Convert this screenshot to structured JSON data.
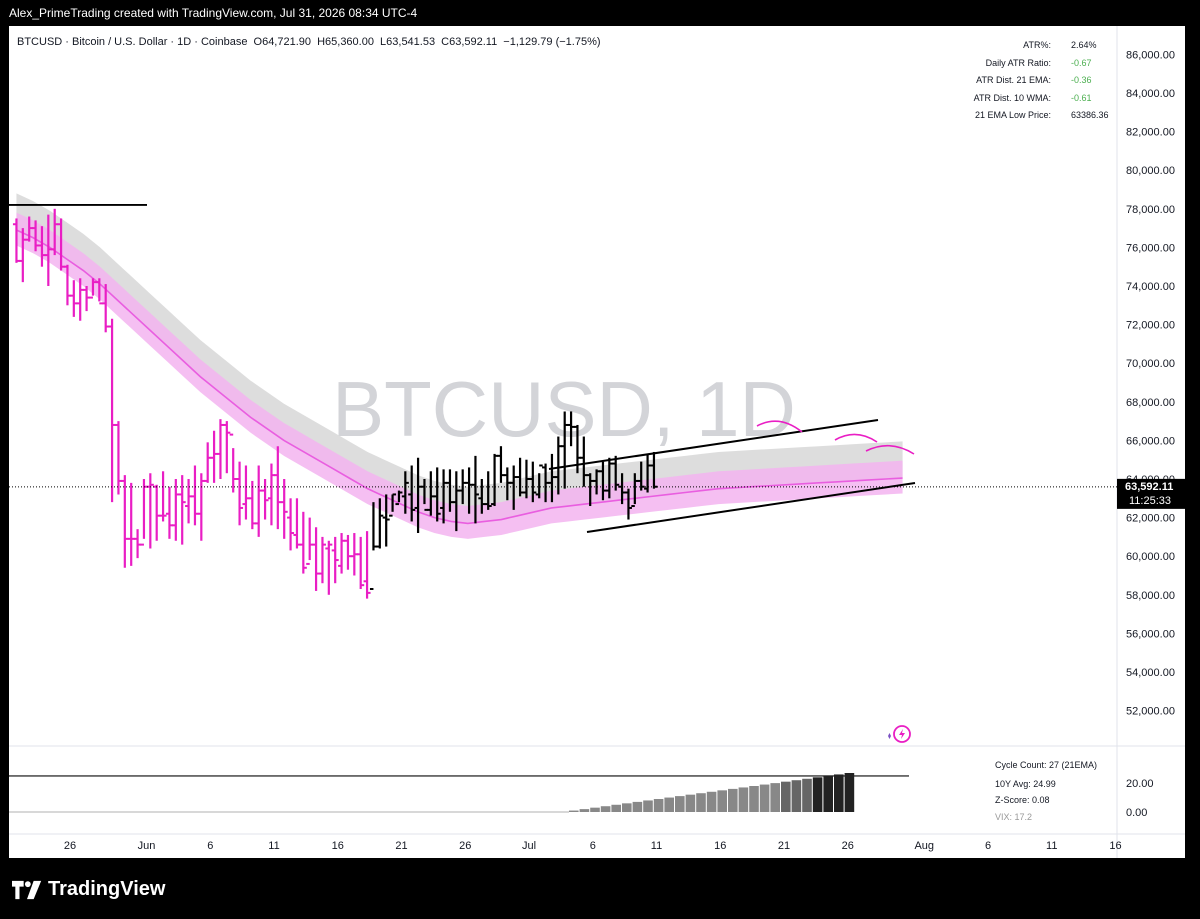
{
  "header": {
    "attribution": "Alex_PrimeTrading created with TradingView.com, Jul 31, 2026 08:34 UTC-4"
  },
  "legend": {
    "symbol": "BTCUSD · Bitcoin / U.S. Dollar · 1D · Coinbase",
    "open": "O64,721.90",
    "high": "H65,360.00",
    "low": "L63,541.53",
    "close": "C63,592.11",
    "change": "−1,129.79 (−1.75%)"
  },
  "watermark": "BTCUSD, 1D",
  "stats_table": [
    {
      "label": "ATR%:",
      "value": "2.64%",
      "color": "#131722"
    },
    {
      "label": "Daily ATR Ratio:",
      "value": "-0.67",
      "color": "#4caf50"
    },
    {
      "label": "ATR Dist. 21 EMA:",
      "value": "-0.36",
      "color": "#4caf50"
    },
    {
      "label": "ATR Dist. 10 WMA:",
      "value": "-0.61",
      "color": "#4caf50"
    },
    {
      "label": "21 EMA Low Price:",
      "value": "63386.36",
      "color": "#131722"
    }
  ],
  "price_label": {
    "price": "63,592.11",
    "countdown": "11:25:33"
  },
  "indicator": {
    "cycle_count": "Cycle Count: 27 (21EMA)",
    "avg": "10Y Avg: 24.99",
    "zscore": "Z-Score: 0.08",
    "vix": "VIX: 17.2",
    "axis_ticks": [
      "20.00",
      "0.00"
    ]
  },
  "brand": "TradingView",
  "colors": {
    "bar_up": "#000000",
    "bar_down": "#e91ec4",
    "ema_band": "#f3b4f0",
    "ema_line": "#e95ee0",
    "gray_band": "#d9d9d9",
    "channel": "#000000",
    "arcs": "#e91ec4"
  },
  "chart_data": {
    "type": "ohlc",
    "ylim": [
      50000,
      87000
    ],
    "y_ticks": [
      "52,000.00",
      "54,000.00",
      "56,000.00",
      "58,000.00",
      "60,000.00",
      "62,000.00",
      "64,000.00",
      "66,000.00",
      "68,000.00",
      "70,000.00",
      "72,000.00",
      "74,000.00",
      "76,000.00",
      "78,000.00",
      "80,000.00",
      "82,000.00",
      "84,000.00",
      "86,000.00"
    ],
    "x_ticks": [
      {
        "label": "26",
        "day": 0
      },
      {
        "label": "Jun",
        "day": 6
      },
      {
        "label": "6",
        "day": 11
      },
      {
        "label": "11",
        "day": 16
      },
      {
        "label": "16",
        "day": 21
      },
      {
        "label": "21",
        "day": 26
      },
      {
        "label": "26",
        "day": 31
      },
      {
        "label": "Jul",
        "day": 36
      },
      {
        "label": "6",
        "day": 41
      },
      {
        "label": "11",
        "day": 46
      },
      {
        "label": "16",
        "day": 51
      },
      {
        "label": "21",
        "day": 56
      },
      {
        "label": "26",
        "day": 61
      },
      {
        "label": "Aug",
        "day": 67
      },
      {
        "label": "6",
        "day": 72
      },
      {
        "label": "11",
        "day": 77
      },
      {
        "label": "16",
        "day": 82
      }
    ],
    "bars": [
      [
        77200,
        77500,
        75200,
        75300
      ],
      [
        75300,
        77000,
        74200,
        76400
      ],
      [
        76400,
        77600,
        76300,
        77000
      ],
      [
        77000,
        77400,
        75800,
        76100
      ],
      [
        76100,
        77100,
        75000,
        75600
      ],
      [
        75600,
        77700,
        74000,
        75900
      ],
      [
        75900,
        78000,
        75600,
        77200
      ],
      [
        77200,
        77500,
        74800,
        75000
      ],
      [
        75000,
        75100,
        73000,
        73500
      ],
      [
        73500,
        74300,
        72400,
        73100
      ],
      [
        73100,
        74400,
        72200,
        73800
      ],
      [
        73800,
        74000,
        72700,
        73400
      ],
      [
        73400,
        74400,
        73500,
        74200
      ],
      [
        74200,
        74400,
        73200,
        73100
      ],
      [
        73100,
        74100,
        71600,
        71900
      ],
      [
        71900,
        72300,
        62800,
        66800
      ],
      [
        66800,
        67000,
        63200,
        63900
      ],
      [
        63900,
        64200,
        59400,
        60900
      ],
      [
        60900,
        63800,
        59500,
        60900
      ],
      [
        60900,
        61400,
        59900,
        60600
      ],
      [
        60600,
        64000,
        60900,
        63600
      ],
      [
        63600,
        64300,
        60400,
        63700
      ],
      [
        63600,
        63700,
        60800,
        62100
      ],
      [
        62100,
        64400,
        61800,
        62100
      ],
      [
        62200,
        63600,
        60900,
        61600
      ],
      [
        61600,
        64000,
        60800,
        63200
      ],
      [
        63200,
        64200,
        60600,
        62800
      ],
      [
        62600,
        64000,
        61700,
        63100
      ],
      [
        63100,
        64700,
        61600,
        62200
      ],
      [
        62200,
        64300,
        60800,
        63900
      ],
      [
        63900,
        65900,
        63800,
        65100
      ],
      [
        65100,
        66500,
        63800,
        65300
      ],
      [
        65300,
        67100,
        64000,
        66800
      ],
      [
        66800,
        67000,
        64300,
        66400
      ],
      [
        66300,
        65600,
        63300,
        64000
      ],
      [
        64000,
        64900,
        61600,
        62500
      ],
      [
        62700,
        64700,
        61900,
        63000
      ],
      [
        63000,
        63900,
        61400,
        61700
      ],
      [
        61700,
        64700,
        61000,
        63400
      ],
      [
        63400,
        64000,
        61900,
        62900
      ],
      [
        63000,
        64800,
        61600,
        64200
      ],
      [
        64200,
        65700,
        61400,
        62800
      ],
      [
        62800,
        64000,
        60900,
        62300
      ],
      [
        62000,
        63000,
        60300,
        61200
      ],
      [
        61100,
        63000,
        60400,
        60600
      ],
      [
        60600,
        62300,
        59100,
        59400
      ],
      [
        59600,
        62000,
        59800,
        60600
      ],
      [
        60600,
        61500,
        58200,
        59100
      ],
      [
        59100,
        61000,
        58600,
        60600
      ],
      [
        60400,
        60800,
        58000,
        60600
      ],
      [
        60300,
        61000,
        58600,
        59800
      ],
      [
        59500,
        61200,
        59100,
        60800
      ],
      [
        60800,
        61100,
        59300,
        60000
      ],
      [
        60000,
        61200,
        59000,
        60100
      ],
      [
        60100,
        61000,
        58300,
        58500
      ],
      [
        58700,
        61300,
        57800,
        58100
      ],
      [
        58300,
        62800,
        60300,
        60500
      ],
      [
        60500,
        63000,
        60400,
        62100
      ],
      [
        62000,
        63200,
        60500,
        61900
      ],
      [
        62100,
        63200,
        62300,
        63200
      ],
      [
        62700,
        63400,
        62800,
        63300
      ],
      [
        63100,
        64400,
        62200,
        63800
      ],
      [
        63200,
        64700,
        61800,
        62400
      ],
      [
        62500,
        65100,
        61200,
        63600
      ],
      [
        63600,
        64000,
        62700,
        62400
      ],
      [
        62400,
        64400,
        62100,
        63100
      ],
      [
        63100,
        64600,
        61800,
        62200
      ],
      [
        62500,
        64500,
        61700,
        63800
      ],
      [
        63800,
        64500,
        62300,
        62800
      ],
      [
        62800,
        64400,
        61300,
        63400
      ],
      [
        63400,
        64500,
        62700,
        63800
      ],
      [
        63800,
        64600,
        62200,
        63700
      ],
      [
        63700,
        65200,
        61700,
        63200
      ],
      [
        63000,
        64000,
        62200,
        62700
      ],
      [
        62700,
        64400,
        62400,
        62600
      ],
      [
        62700,
        65300,
        62600,
        65200
      ],
      [
        65200,
        65700,
        63800,
        64200
      ],
      [
        64200,
        64600,
        62900,
        63800
      ],
      [
        63800,
        64700,
        62400,
        64100
      ],
      [
        64100,
        65100,
        63100,
        63300
      ],
      [
        63300,
        65000,
        63000,
        64000
      ],
      [
        64000,
        64900,
        62800,
        63300
      ],
      [
        63200,
        64300,
        63000,
        64700
      ],
      [
        64600,
        64800,
        62800,
        63800
      ],
      [
        63800,
        65300,
        62800,
        64100
      ],
      [
        64100,
        66200,
        63200,
        65700
      ],
      [
        65700,
        67500,
        63500,
        66800
      ],
      [
        66800,
        67500,
        65700,
        66700
      ],
      [
        66700,
        66800,
        64300,
        65100
      ],
      [
        65100,
        66200,
        63600,
        64200
      ],
      [
        64200,
        64300,
        62600,
        63900
      ],
      [
        63900,
        64500,
        63200,
        64400
      ],
      [
        64400,
        64900,
        62900,
        63400
      ],
      [
        63400,
        65100,
        63000,
        64800
      ],
      [
        64800,
        65200,
        63400,
        63700
      ],
      [
        63600,
        64300,
        62700,
        63300
      ],
      [
        63300,
        63500,
        61900,
        62500
      ],
      [
        62600,
        64300,
        62700,
        63900
      ],
      [
        63900,
        64900,
        63400,
        63600
      ],
      [
        63500,
        65300,
        63300,
        64700
      ],
      [
        64700,
        65400,
        63500,
        63600
      ]
    ],
    "ema21": [
      76900,
      76500,
      76000,
      75400,
      74800,
      74100,
      73300,
      72500,
      71700,
      70900,
      70100,
      69300,
      68600,
      67900,
      67200,
      66600,
      66000,
      65500,
      65000,
      64500,
      64000,
      63500,
      63100,
      62700,
      62300,
      62000,
      61800,
      61700,
      61800,
      61900,
      62100,
      62300,
      62500,
      62600,
      62700,
      62800,
      62900,
      63000,
      63100,
      63200,
      63300,
      63400,
      63500,
      63550,
      63600,
      63650,
      63700,
      63750,
      63800,
      63850,
      63900,
      63950,
      64000,
      64050
    ],
    "cycle_count": [
      1,
      2,
      3,
      4,
      5,
      6,
      7,
      8,
      9,
      10,
      11,
      12,
      13,
      14,
      15,
      16,
      17,
      18,
      19,
      20,
      21,
      22,
      23,
      24,
      25,
      26,
      27
    ]
  }
}
